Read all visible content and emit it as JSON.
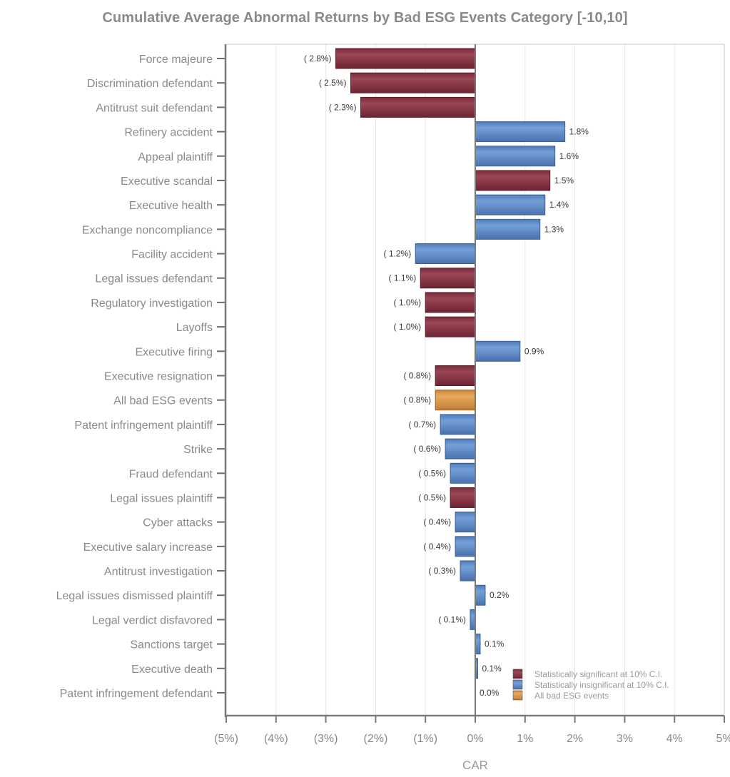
{
  "chart_data": {
    "type": "bar",
    "orientation": "horizontal",
    "title": "Cumulative Average Abnormal Returns by Bad ESG Events Category [-10,10]",
    "xlabel": "CAR",
    "ylabel": "",
    "xlim": [
      -5,
      5
    ],
    "x_unit": "%",
    "grid": true,
    "x_ticks": [
      -5,
      -4,
      -3,
      -2,
      -1,
      0,
      1,
      2,
      3,
      4,
      5
    ],
    "x_tick_labels": [
      "(5%)",
      "(4%)",
      "(3%)",
      "(2%)",
      "(1%)",
      "0%",
      "1%",
      "2%",
      "3%",
      "4%",
      "5%"
    ],
    "categories": [
      "Force majeure",
      "Discrimination defendant",
      "Antitrust suit defendant",
      "Refinery accident",
      "Appeal plaintiff",
      "Executive scandal",
      "Executive health",
      "Exchange noncompliance",
      "Facility accident",
      "Legal issues defendant",
      "Regulatory investigation",
      "Layoffs",
      "Executive firing",
      "Executive resignation",
      "All bad ESG events",
      "Patent infringement plaintiff",
      "Strike",
      "Fraud defendant",
      "Legal issues plaintiff",
      "Cyber attacks",
      "Executive salary increase",
      "Antitrust investigation",
      "Legal issues dismissed plaintiff",
      "Legal verdict disfavored",
      "Sanctions target",
      "Executive death",
      "Patent infringement defendant"
    ],
    "values": [
      -2.8,
      -2.5,
      -2.3,
      1.8,
      1.6,
      1.5,
      1.4,
      1.3,
      -1.2,
      -1.1,
      -1.0,
      -1.0,
      0.9,
      -0.8,
      -0.8,
      -0.7,
      -0.6,
      -0.5,
      -0.5,
      -0.4,
      -0.4,
      -0.3,
      0.2,
      -0.1,
      0.1,
      0.05,
      0.0
    ],
    "value_labels": [
      "( 2.8%)",
      "( 2.5%)",
      "( 2.3%)",
      "1.8%",
      "1.6%",
      "1.5%",
      "1.4%",
      "1.3%",
      "( 1.2%)",
      "( 1.1%)",
      "( 1.0%)",
      "( 1.0%)",
      "0.9%",
      "( 0.8%)",
      "( 0.8%)",
      "( 0.7%)",
      "( 0.6%)",
      "( 0.5%)",
      "( 0.5%)",
      "( 0.4%)",
      "( 0.4%)",
      "( 0.3%)",
      "0.2%",
      "( 0.1%)",
      "0.1%",
      "0.1%",
      "0.0%"
    ],
    "groups": [
      "significant",
      "significant",
      "significant",
      "insignificant",
      "insignificant",
      "significant",
      "insignificant",
      "insignificant",
      "insignificant",
      "significant",
      "significant",
      "significant",
      "insignificant",
      "significant",
      "all",
      "insignificant",
      "insignificant",
      "insignificant",
      "significant",
      "insignificant",
      "insignificant",
      "insignificant",
      "insignificant",
      "insignificant",
      "insignificant",
      "insignificant",
      "insignificant"
    ],
    "legend": {
      "placement": "bottom-right",
      "entries": [
        {
          "key": "significant",
          "label": "Statistically significant at 10% C.I.",
          "color": "#8b3a4a"
        },
        {
          "key": "insignificant",
          "label": "Statistically insignificant at 10% C.I.",
          "color": "#5f8ccb"
        },
        {
          "key": "all",
          "label": "All bad ESG events",
          "color": "#d9954a"
        }
      ]
    }
  }
}
